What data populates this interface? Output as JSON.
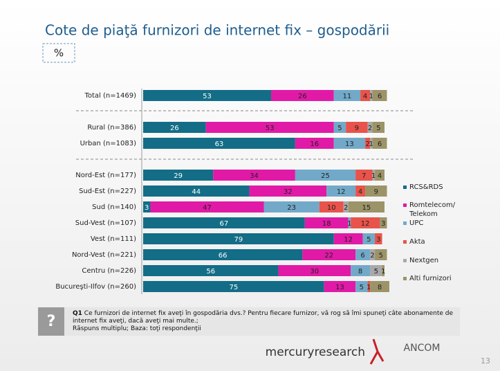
{
  "chart_data": {
    "type": "stacked-bar-horizontal",
    "title": "Cote de piaţă furnizori de internet fix – gospodării",
    "unit_label": "%",
    "categories": [
      "Total (n=1469)",
      "Rural (n=386)",
      "Urban (n=1083)",
      "Nord-Est (n=177)",
      "Sud-Est (n=227)",
      "Sud (n=140)",
      "Sud-Vest (n=107)",
      "Vest (n=111)",
      "Nord-Vest (n=221)",
      "Centru (n=226)",
      "Bucureşti-Ilfov (n=260)"
    ],
    "xlim": [
      0,
      100
    ],
    "legend_position": "right",
    "series": [
      {
        "name": "RCS&RDS",
        "color": "#136d87",
        "values": [
          53,
          26,
          63,
          29,
          44,
          3,
          67,
          79,
          66,
          56,
          75
        ]
      },
      {
        "name": "Romtelecom/ Telekom",
        "color": "#e01aa6",
        "values": [
          26,
          53,
          16,
          34,
          32,
          47,
          18,
          12,
          22,
          30,
          13
        ]
      },
      {
        "name": "UPC",
        "color": "#72a9c9",
        "values": [
          11,
          5,
          13,
          25,
          12,
          23,
          1,
          5,
          6,
          8,
          5
        ]
      },
      {
        "name": "Akta",
        "color": "#e8534b",
        "values": [
          4,
          9,
          2,
          7,
          4,
          10,
          12,
          3,
          0,
          0,
          1
        ]
      },
      {
        "name": "Nextgen",
        "color": "#a9a9a9",
        "values": [
          1,
          2,
          1,
          1,
          0,
          2,
          0,
          0,
          2,
          5,
          0
        ]
      },
      {
        "name": "Alti furnizori",
        "color": "#9c9468",
        "values": [
          6,
          5,
          6,
          4,
          9,
          15,
          3,
          0,
          5,
          1,
          8
        ]
      }
    ]
  },
  "footnote": {
    "question_id": "Q1",
    "question": "Ce furnizori de internet fix aveţi în gospodăria dvs.? Pentru fiecare furnizor, vă rog să îmi spuneţi câte abonamente de internet fix aveţi, dacă aveţi mai multe.;",
    "base": "Răspuns multiplu; Baza: toţi respondenţii"
  },
  "footer": {
    "logo_left": "mercuryresearch",
    "logo_right": "ANCOM",
    "page_number": "13"
  }
}
